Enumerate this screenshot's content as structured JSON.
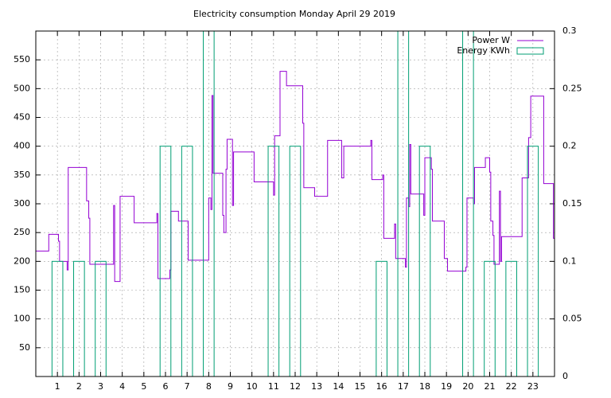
{
  "chart_data": {
    "type": "line",
    "title": "Electricity consumption Monday April 29 2019",
    "xlim": [
      0,
      24
    ],
    "xticks": [
      1,
      2,
      3,
      4,
      5,
      6,
      7,
      8,
      9,
      10,
      11,
      12,
      13,
      14,
      15,
      16,
      17,
      18,
      19,
      20,
      21,
      22,
      23
    ],
    "ylim": [
      0,
      600
    ],
    "yticks": [
      50,
      100,
      150,
      200,
      250,
      300,
      350,
      400,
      450,
      500,
      550
    ],
    "y2lim": [
      0,
      0.3
    ],
    "y2ticks": [
      0,
      0.05,
      0.1,
      0.15,
      0.2,
      0.25,
      0.3
    ],
    "grid": true,
    "legend": "top-right",
    "series": [
      {
        "name": "Power W",
        "color": "#9400d3",
        "style": "steps",
        "x": [
          0,
          0.6,
          1.05,
          1.1,
          1.45,
          1.5,
          2.35,
          2.45,
          2.5,
          3.6,
          3.65,
          3.9,
          4.55,
          5.6,
          5.65,
          6.2,
          6.25,
          6.6,
          7.05,
          8.0,
          8.1,
          8.15,
          8.2,
          8.65,
          8.7,
          8.8,
          8.85,
          9.1,
          9.15,
          10.1,
          11.0,
          11.05,
          11.3,
          11.6,
          12.35,
          12.4,
          12.9,
          13.5,
          14.15,
          14.25,
          15.5,
          15.55,
          16.05,
          16.1,
          16.6,
          16.65,
          17.1,
          17.15,
          17.25,
          17.3,
          17.35,
          17.95,
          18.0,
          18.3,
          18.35,
          18.9,
          19.05,
          19.9,
          19.95,
          20.25,
          20.3,
          20.8,
          21.0,
          21.05,
          21.15,
          21.2,
          21.45,
          21.5,
          21.55,
          22.5,
          22.8,
          22.9,
          23.5,
          23.95,
          24
        ],
        "values": [
          218,
          247,
          235,
          200,
          185,
          363,
          305,
          275,
          195,
          297,
          165,
          313,
          267,
          283,
          170,
          185,
          287,
          270,
          202,
          310,
          290,
          488,
          353,
          280,
          250,
          360,
          412,
          297,
          390,
          338,
          315,
          418,
          530,
          505,
          440,
          328,
          313,
          410,
          345,
          400,
          410,
          342,
          350,
          240,
          265,
          205,
          190,
          310,
          295,
          403,
          317,
          280,
          380,
          360,
          270,
          205,
          183,
          190,
          310,
          300,
          363,
          380,
          355,
          270,
          245,
          195,
          322,
          200,
          243,
          345,
          415,
          487,
          335,
          240,
          240
        ]
      },
      {
        "name": "Energy KWh",
        "color": "#009e73",
        "style": "boxes",
        "axis": "y2",
        "x": [
          1,
          2,
          3,
          6,
          7,
          8,
          11,
          12,
          16,
          17,
          18,
          20,
          21,
          22,
          23
        ],
        "values": [
          0.1,
          0.1,
          0.1,
          0.2,
          0.2,
          0.3,
          0.2,
          0.2,
          0.1,
          0.3,
          0.2,
          0.3,
          0.1,
          0.1,
          0.2
        ]
      }
    ]
  }
}
